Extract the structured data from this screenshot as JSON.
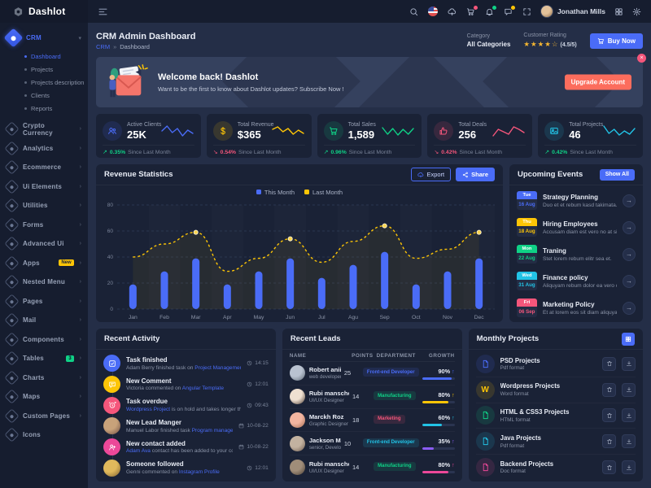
{
  "theme": {
    "accent": "#4a6cf7",
    "warning": "#fdc506",
    "positive": "#0fd186",
    "negative": "#f5567b",
    "cyan": "#22c3e6",
    "pink": "#ec4899",
    "card": "#1a2236",
    "bg": "#242e47"
  },
  "brand": {
    "name": "Dashlot"
  },
  "topbar": {
    "user_name": "Jonathan Mills",
    "icon_names": [
      "search-icon",
      "flag-icon",
      "cloud-upload-icon",
      "cart-icon",
      "bell-icon",
      "chat-icon",
      "fullscreen-icon"
    ],
    "badge_colors": {
      "cart-icon": "#f5567b",
      "bell-icon": "#0fd186",
      "chat-icon": "#fdc506"
    }
  },
  "sidebar": {
    "active_group": {
      "label": "CRM",
      "submenu": [
        {
          "label": "Dashboard",
          "active": true
        },
        {
          "label": "Projects"
        },
        {
          "label": "Projects description"
        },
        {
          "label": "Clients"
        },
        {
          "label": "Reports"
        }
      ]
    },
    "items": [
      {
        "label": "Crypto Currency",
        "icon": "crypto-currency-icon"
      },
      {
        "label": "Analytics",
        "icon": "analytics-icon"
      },
      {
        "label": "Ecommerce",
        "icon": "ecommerce-icon"
      },
      {
        "label": "Ui Elements",
        "icon": "ui-elements-icon"
      },
      {
        "label": "Utilities",
        "icon": "utilities-icon"
      },
      {
        "label": "Forms",
        "icon": "forms-icon"
      },
      {
        "label": "Advanced Ui",
        "icon": "advanced-ui-icon"
      },
      {
        "label": "Apps",
        "icon": "apps-icon",
        "badge": "New",
        "badge_color": "#fdc506",
        "badge_text_color": "#1a2236"
      },
      {
        "label": "Nested Menu",
        "icon": "nested-menu-icon"
      },
      {
        "label": "Pages",
        "icon": "pages-icon"
      },
      {
        "label": "Mail",
        "icon": "mail-icon"
      },
      {
        "label": "Components",
        "icon": "components-icon"
      },
      {
        "label": "Tables",
        "icon": "tables-icon",
        "badge": "3",
        "badge_color": "#0fd186",
        "badge_text_color": "#0b1020"
      },
      {
        "label": "Charts",
        "icon": "charts-icon"
      },
      {
        "label": "Maps",
        "icon": "maps-icon"
      },
      {
        "label": "Custom Pages",
        "icon": "custom-pages-icon"
      },
      {
        "label": "Icons",
        "icon": "icons-icon",
        "no_chevron": true
      }
    ]
  },
  "page": {
    "title": "CRM Admin Dashboard",
    "breadcrumb_root": "CRM",
    "breadcrumb_sep": "»",
    "breadcrumb_current": "Dashboard"
  },
  "page_meta": {
    "category_label": "Category",
    "category_value": "All Categories",
    "rating_label": "Customer Rating",
    "stars_filled": "★★★★",
    "star_empty": "☆",
    "rating_value": "(4.5/5)",
    "buy_label": "Buy Now"
  },
  "banner": {
    "title": "Welcome back! Dashlot",
    "subtitle": "Want to be the first to know about Dashlot updates? Subscribe Now !",
    "button_label": "Upgrade Account",
    "close_label": "×"
  },
  "stats": [
    {
      "title": "Active Clients",
      "value": "25K",
      "change": "0.35%",
      "direction": "up",
      "note": "Since Last Month",
      "color": "#4a6cf7",
      "icon": "users-icon",
      "spark": [
        5,
        8,
        4,
        6.5,
        2,
        5.5,
        3.5
      ]
    },
    {
      "title": "Total Revenue",
      "value": "$365",
      "change": "0.54%",
      "direction": "down",
      "note": "Since Last Month",
      "color": "#fdc506",
      "icon": "dollar-icon",
      "spark": [
        6,
        7.5,
        4.5,
        6.5,
        3,
        5.5,
        3.5
      ]
    },
    {
      "title": "Total Sales",
      "value": "1,589",
      "change": "0.96%",
      "direction": "up",
      "note": "Since Last Month",
      "color": "#0fd186",
      "icon": "sales-cart-icon",
      "spark": [
        7,
        3,
        6.5,
        2.5,
        6,
        3,
        6.5
      ]
    },
    {
      "title": "Total Deals",
      "value": "256",
      "change": "0.42%",
      "direction": "down",
      "note": "Since Last Month",
      "color": "#f5567b",
      "icon": "thumbs-up-icon",
      "spark": [
        2,
        6,
        4.5,
        3,
        7.5,
        6,
        4
      ]
    },
    {
      "title": "Total Projects",
      "value": "46",
      "change": "0.42%",
      "direction": "up",
      "note": "Since Last Month",
      "color": "#22c3e6",
      "icon": "projects-image-icon",
      "spark": [
        8,
        3.5,
        6,
        2.5,
        5,
        3,
        6.5
      ]
    }
  ],
  "revenue": {
    "title": "Revenue Statistics",
    "export_label": "Export",
    "share_label": "Share"
  },
  "chart_data": {
    "type": "bar",
    "title": "Revenue Statistics",
    "categories": [
      "Jan",
      "Feb",
      "Mar",
      "Apr",
      "May",
      "Jun",
      "Jul",
      "Agu",
      "Sep",
      "Oct",
      "Nov",
      "Dec"
    ],
    "series": [
      {
        "name": "This Month",
        "type": "bar",
        "color": "#4a6cf7",
        "values": [
          19,
          29,
          39,
          19,
          29,
          39,
          24,
          34,
          44,
          19,
          29,
          39
        ]
      },
      {
        "name": "Last Month",
        "type": "line",
        "color": "#fdc506",
        "dashed": true,
        "values": [
          40,
          50,
          59,
          29,
          39,
          54,
          36,
          52,
          64,
          39,
          46,
          59
        ]
      }
    ],
    "xlabel": "",
    "ylabel": "",
    "ylim": [
      0,
      80
    ],
    "yticks": [
      0,
      20,
      40,
      60,
      80
    ],
    "grid": true,
    "legend_position": "top"
  },
  "events": {
    "title": "Upcoming Events",
    "show_all_label": "Show All",
    "items": [
      {
        "day": "Tue",
        "date": "16 Aug",
        "title": "Strategy Planning",
        "desc": "Duo et et rebum kasd takimata.",
        "color": "#4a6cf7"
      },
      {
        "day": "Thu",
        "date": "18 Aug",
        "title": "Hiring Employees",
        "desc": "Accusam diam est vero no at sit sea. Te...",
        "color": "#fdc506"
      },
      {
        "day": "Mon",
        "date": "22 Aug",
        "title": "Traning",
        "desc": "Stet lorem rebum elitr sea et.",
        "color": "#0fd186"
      },
      {
        "day": "Wed",
        "date": "31 Aug",
        "title": "Finance policy",
        "desc": "Aliquyam rebum dolor ea vero clita eirm...",
        "color": "#22c3e6"
      },
      {
        "day": "Fri",
        "date": "06 Sep",
        "title": "Marketing Policy",
        "desc": "Et at lorem eos sit diam aliquyam volupt...",
        "color": "#f5567b"
      }
    ]
  },
  "activity": {
    "title": "Recent Activity",
    "items": [
      {
        "title": "Task finished",
        "icon": "task-check-icon",
        "color": "#4a6cf7",
        "time": "14:15",
        "time_icon": "clock-icon",
        "desc": [
          {
            "t": "Adam Berry finished task on "
          },
          {
            "t": "Project Management",
            "link": true
          }
        ]
      },
      {
        "title": "New Comment",
        "icon": "comment-icon",
        "color": "#fdc506",
        "time": "12:01",
        "time_icon": "clock-icon",
        "desc": [
          {
            "t": "Victoria commented on "
          },
          {
            "t": "Angular Template",
            "link": true
          }
        ]
      },
      {
        "title": "Task overdue",
        "icon": "alarm-icon",
        "color": "#f5567b",
        "time": "09:43",
        "time_icon": "clock-icon",
        "desc": [
          {
            "t": "Wordpress Project",
            "link": true
          },
          {
            "t": " is on hold and takes longer than usual."
          }
        ]
      },
      {
        "title": "New Lead Manger",
        "avatar": true,
        "avatar_colors": [
          "#c8a27a",
          "#6d4c41"
        ],
        "time": "10-08-22",
        "time_icon": "calendar-icon",
        "desc": [
          {
            "t": "Manuel Labor finished task "
          },
          {
            "t": "Program management",
            "link": true
          }
        ]
      },
      {
        "title": "New contact added",
        "icon": "user-plus-icon",
        "color": "#ec4899",
        "time": "10-08-22",
        "time_icon": "calendar-icon",
        "desc": [
          {
            "t": "Adam Ava",
            "link": true
          },
          {
            "t": " contact has been added to your contact list."
          }
        ]
      },
      {
        "title": "Someone followed",
        "avatar": true,
        "avatar_colors": [
          "#e0b95c",
          "#7b5e2e"
        ],
        "time": "12:01",
        "time_icon": "clock-icon",
        "desc": [
          {
            "t": "Genni commented on "
          },
          {
            "t": "Instagram Profile",
            "link": true
          }
        ]
      }
    ]
  },
  "leads": {
    "title": "Recent Leads",
    "columns": [
      "NAME",
      "POINTS",
      "DEPARTMENT",
      "GROWTH"
    ],
    "rows": [
      {
        "name": "Robert anii",
        "role": "web developer",
        "points": "25",
        "dept": "Front-end Developer",
        "dept_color": "#4a6cf7",
        "growth": "90%",
        "bar": 90,
        "bar_color": "#4a6cf7",
        "avatar_colors": [
          "#b9c2d0",
          "#5c6773"
        ]
      },
      {
        "name": "Rubi manscho",
        "role": "UI/UX Designer",
        "points": "14",
        "dept": "Manufacturing",
        "dept_color": "#0fd186",
        "growth": "80%",
        "bar": 80,
        "bar_color": "#fdc506",
        "avatar_colors": [
          "#efe0d1",
          "#4a3b32"
        ]
      },
      {
        "name": "Marckh Roz",
        "role": "Graphic Designer",
        "points": "18",
        "dept": "Marketing",
        "dept_color": "#f5567b",
        "growth": "60%",
        "bar": 60,
        "bar_color": "#22c3e6",
        "avatar_colors": [
          "#f2b5a0",
          "#a06a4f"
        ]
      },
      {
        "name": "Jackson Mach",
        "role": "senior, Developer",
        "points": "10",
        "dept": "Front-end Developer",
        "dept_color": "#22c3e6",
        "growth": "35%",
        "bar": 35,
        "bar_color": "#8b5cf6",
        "avatar_colors": [
          "#c3b2a0",
          "#6e5c4f"
        ]
      },
      {
        "name": "Rubi manscho",
        "role": "UI/UX Designer",
        "points": "14",
        "dept": "Manufacturing",
        "dept_color": "#0fd186",
        "growth": "80%",
        "bar": 80,
        "bar_color": "#ec4899",
        "avatar_colors": [
          "#a08d79",
          "#4a3f35"
        ]
      }
    ]
  },
  "projects": {
    "title": "Monthly Projects",
    "items": [
      {
        "name": "PSD Projects",
        "format": "Pdf format",
        "color": "#4a6cf7",
        "icon": "file-icon"
      },
      {
        "name": "Wordpress Projects",
        "format": "Word format",
        "color": "#fdc506",
        "icon": "wordpress-icon"
      },
      {
        "name": "HTML & CSS3 Projects",
        "format": "HTML format",
        "color": "#0fd186",
        "icon": "file-icon"
      },
      {
        "name": "Java Projects",
        "format": "Pdf format",
        "color": "#22c3e6",
        "icon": "file-icon"
      },
      {
        "name": "Backend Projects",
        "format": "Doc format",
        "color": "#ec4899",
        "icon": "file-icon"
      }
    ]
  }
}
